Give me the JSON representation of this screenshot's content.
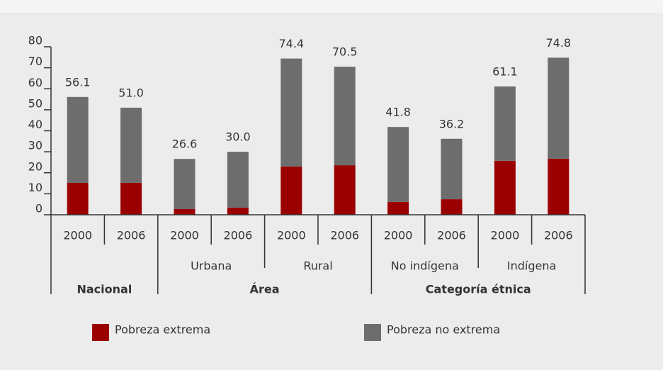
{
  "chart_data": {
    "type": "stacked_bar",
    "categories": [
      "2000",
      "2006",
      "2000",
      "2006",
      "2000",
      "2006",
      "2000",
      "2006",
      "2000",
      "2006"
    ],
    "subgroups": [
      null,
      "Urbana",
      "Rural",
      "No indígena",
      "Indígena"
    ],
    "groups": [
      "Nacional",
      "Área",
      "Categoría étnica"
    ],
    "series": [
      {
        "name": "Pobreza extrema",
        "color": "#9b0000",
        "values": [
          15.2,
          15.2,
          2.7,
          3.4,
          23.0,
          23.6,
          6.1,
          7.4,
          25.7,
          26.7
        ]
      },
      {
        "name": "Pobreza no extrema",
        "color": "#6d6d6e",
        "values": [
          40.9,
          35.8,
          23.9,
          26.6,
          51.4,
          46.9,
          35.7,
          28.8,
          35.4,
          48.1
        ]
      }
    ],
    "totals": [
      56.1,
      51.0,
      26.6,
      30.0,
      74.4,
      70.5,
      41.8,
      36.2,
      61.1,
      74.8
    ],
    "total_labels": [
      "56.1",
      "51.0",
      "26.6",
      "30.0",
      "74.4",
      "70.5",
      "41.8",
      "36.2",
      "61.1",
      "74.8"
    ],
    "ylim": [
      0,
      80
    ],
    "yticks": [
      0,
      10,
      20,
      30,
      40,
      50,
      60,
      70,
      80
    ]
  }
}
